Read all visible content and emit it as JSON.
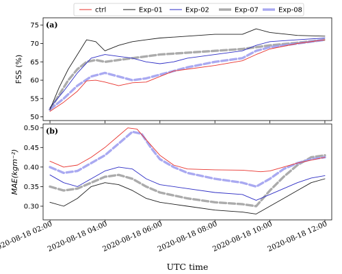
{
  "chart_data": {
    "type": "line",
    "xlabel": "UTC time",
    "x_ticks": [
      "2020-08-18 02:00",
      "2020-08-18 04:00",
      "2020-08-18 06:00",
      "2020-08-18 08:00",
      "2020-08-18 10:00",
      "2020-08-18 12:00"
    ],
    "x_range": [
      "2020-08-18 01:45",
      "2020-08-18 12:15"
    ],
    "legend": {
      "placement": "top",
      "entries": [
        "ctrl",
        "Exp-01",
        "Exp-02",
        "Exp-07",
        "Exp-08"
      ]
    },
    "series_styles": [
      {
        "name": "ctrl",
        "color": "#e8312b",
        "width": "thin",
        "dash": "solid"
      },
      {
        "name": "Exp-01",
        "color": "#1a1a1a",
        "width": "thin",
        "dash": "solid"
      },
      {
        "name": "Exp-02",
        "color": "#2b2bc4",
        "width": "thin",
        "dash": "solid"
      },
      {
        "name": "Exp-07",
        "color": "#9c9c9c",
        "width": "thick",
        "dash": "dashed"
      },
      {
        "name": "Exp-08",
        "color": "#9a9aee",
        "width": "thick",
        "dash": "dashed"
      }
    ],
    "panels": [
      {
        "label": "(a)",
        "ylabel": "FSS (%)",
        "ylim": [
          49,
          77
        ],
        "yticks": [
          50,
          55,
          60,
          65,
          70,
          75
        ],
        "grid": false,
        "series": [
          {
            "name": "ctrl",
            "points": [
              [
                "2020-08-18 02:00",
                51.5
              ],
              [
                "2020-08-18 02:30",
                54
              ],
              [
                "2020-08-18 03:00",
                57
              ],
              [
                "2020-08-18 03:20",
                59.8
              ],
              [
                "2020-08-18 03:40",
                60
              ],
              [
                "2020-08-18 04:00",
                59.5
              ],
              [
                "2020-08-18 04:30",
                58.5
              ],
              [
                "2020-08-18 05:00",
                59.3
              ],
              [
                "2020-08-18 05:30",
                59.5
              ],
              [
                "2020-08-18 06:00",
                61
              ],
              [
                "2020-08-18 06:30",
                62.5
              ],
              [
                "2020-08-18 07:00",
                63
              ],
              [
                "2020-08-18 08:00",
                64
              ],
              [
                "2020-08-18 09:00",
                65.3
              ],
              [
                "2020-08-18 09:30",
                67
              ],
              [
                "2020-08-18 10:00",
                68.5
              ],
              [
                "2020-08-18 11:00",
                70
              ],
              [
                "2020-08-18 12:00",
                71
              ]
            ]
          },
          {
            "name": "Exp-01",
            "points": [
              [
                "2020-08-18 02:00",
                52
              ],
              [
                "2020-08-18 02:20",
                58
              ],
              [
                "2020-08-18 02:40",
                63
              ],
              [
                "2020-08-18 03:00",
                67
              ],
              [
                "2020-08-18 03:20",
                71
              ],
              [
                "2020-08-18 03:40",
                70.5
              ],
              [
                "2020-08-18 04:00",
                68
              ],
              [
                "2020-08-18 04:30",
                69.5
              ],
              [
                "2020-08-18 05:00",
                70.5
              ],
              [
                "2020-08-18 05:30",
                71
              ],
              [
                "2020-08-18 06:00",
                71.5
              ],
              [
                "2020-08-18 07:00",
                72
              ],
              [
                "2020-08-18 08:00",
                72.5
              ],
              [
                "2020-08-18 09:00",
                72.5
              ],
              [
                "2020-08-18 09:30",
                74
              ],
              [
                "2020-08-18 10:00",
                73
              ],
              [
                "2020-08-18 11:00",
                72.2
              ],
              [
                "2020-08-18 12:00",
                72
              ]
            ]
          },
          {
            "name": "Exp-02",
            "points": [
              [
                "2020-08-18 02:00",
                52.5
              ],
              [
                "2020-08-18 02:30",
                57
              ],
              [
                "2020-08-18 03:00",
                62
              ],
              [
                "2020-08-18 03:30",
                66
              ],
              [
                "2020-08-18 04:00",
                67
              ],
              [
                "2020-08-18 04:30",
                66.5
              ],
              [
                "2020-08-18 05:00",
                66
              ],
              [
                "2020-08-18 05:30",
                65
              ],
              [
                "2020-08-18 06:00",
                64.5
              ],
              [
                "2020-08-18 06:30",
                65
              ],
              [
                "2020-08-18 07:00",
                66
              ],
              [
                "2020-08-18 08:00",
                67
              ],
              [
                "2020-08-18 09:00",
                68
              ],
              [
                "2020-08-18 09:30",
                69.5
              ],
              [
                "2020-08-18 10:00",
                70.5
              ],
              [
                "2020-08-18 11:00",
                71
              ],
              [
                "2020-08-18 12:00",
                71.5
              ]
            ]
          },
          {
            "name": "Exp-07",
            "points": [
              [
                "2020-08-18 02:00",
                52
              ],
              [
                "2020-08-18 02:20",
                56
              ],
              [
                "2020-08-18 02:40",
                60
              ],
              [
                "2020-08-18 03:00",
                63
              ],
              [
                "2020-08-18 03:20",
                65
              ],
              [
                "2020-08-18 03:40",
                65.5
              ],
              [
                "2020-08-18 04:00",
                65
              ],
              [
                "2020-08-18 04:30",
                65.5
              ],
              [
                "2020-08-18 05:00",
                66
              ],
              [
                "2020-08-18 05:30",
                66.5
              ],
              [
                "2020-08-18 06:00",
                67
              ],
              [
                "2020-08-18 07:00",
                67.5
              ],
              [
                "2020-08-18 08:00",
                68
              ],
              [
                "2020-08-18 09:00",
                68.5
              ],
              [
                "2020-08-18 09:30",
                69
              ],
              [
                "2020-08-18 10:00",
                69.5
              ],
              [
                "2020-08-18 11:00",
                70.2
              ],
              [
                "2020-08-18 12:00",
                71
              ]
            ]
          },
          {
            "name": "Exp-08",
            "points": [
              [
                "2020-08-18 02:00",
                52
              ],
              [
                "2020-08-18 02:30",
                55
              ],
              [
                "2020-08-18 03:00",
                58.5
              ],
              [
                "2020-08-18 03:30",
                61
              ],
              [
                "2020-08-18 04:00",
                62
              ],
              [
                "2020-08-18 04:30",
                61
              ],
              [
                "2020-08-18 05:00",
                60
              ],
              [
                "2020-08-18 05:30",
                60.5
              ],
              [
                "2020-08-18 06:00",
                61.5
              ],
              [
                "2020-08-18 07:00",
                63.5
              ],
              [
                "2020-08-18 08:00",
                65
              ],
              [
                "2020-08-18 09:00",
                66
              ],
              [
                "2020-08-18 09:30",
                68
              ],
              [
                "2020-08-18 10:00",
                69
              ],
              [
                "2020-08-18 11:00",
                70
              ],
              [
                "2020-08-18 12:00",
                71
              ]
            ]
          }
        ]
      },
      {
        "label": "(b)",
        "ylabel": "MAE(kgm⁻²)",
        "ylim": [
          0.265,
          0.51
        ],
        "yticks": [
          0.3,
          0.35,
          0.4,
          0.45,
          0.5
        ],
        "grid": false,
        "series": [
          {
            "name": "ctrl",
            "points": [
              [
                "2020-08-18 02:00",
                0.415
              ],
              [
                "2020-08-18 02:30",
                0.4
              ],
              [
                "2020-08-18 03:00",
                0.405
              ],
              [
                "2020-08-18 03:30",
                0.425
              ],
              [
                "2020-08-18 04:00",
                0.45
              ],
              [
                "2020-08-18 04:30",
                0.48
              ],
              [
                "2020-08-18 04:50",
                0.5
              ],
              [
                "2020-08-18 05:10",
                0.497
              ],
              [
                "2020-08-18 05:30",
                0.47
              ],
              [
                "2020-08-18 06:00",
                0.43
              ],
              [
                "2020-08-18 06:30",
                0.405
              ],
              [
                "2020-08-18 07:00",
                0.395
              ],
              [
                "2020-08-18 08:00",
                0.393
              ],
              [
                "2020-08-18 09:00",
                0.392
              ],
              [
                "2020-08-18 09:40",
                0.388
              ],
              [
                "2020-08-18 10:00",
                0.39
              ],
              [
                "2020-08-18 11:00",
                0.41
              ],
              [
                "2020-08-18 12:00",
                0.425
              ]
            ]
          },
          {
            "name": "Exp-01",
            "points": [
              [
                "2020-08-18 02:00",
                0.31
              ],
              [
                "2020-08-18 02:30",
                0.3
              ],
              [
                "2020-08-18 03:00",
                0.32
              ],
              [
                "2020-08-18 03:30",
                0.35
              ],
              [
                "2020-08-18 04:00",
                0.36
              ],
              [
                "2020-08-18 04:30",
                0.355
              ],
              [
                "2020-08-18 05:00",
                0.34
              ],
              [
                "2020-08-18 05:30",
                0.32
              ],
              [
                "2020-08-18 06:00",
                0.31
              ],
              [
                "2020-08-18 07:00",
                0.3
              ],
              [
                "2020-08-18 08:00",
                0.29
              ],
              [
                "2020-08-18 09:00",
                0.285
              ],
              [
                "2020-08-18 09:30",
                0.28
              ],
              [
                "2020-08-18 10:00",
                0.3
              ],
              [
                "2020-08-18 10:30",
                0.32
              ],
              [
                "2020-08-18 11:00",
                0.34
              ],
              [
                "2020-08-18 11:30",
                0.36
              ],
              [
                "2020-08-18 12:00",
                0.37
              ]
            ]
          },
          {
            "name": "Exp-02",
            "points": [
              [
                "2020-08-18 02:00",
                0.38
              ],
              [
                "2020-08-18 02:30",
                0.36
              ],
              [
                "2020-08-18 03:00",
                0.35
              ],
              [
                "2020-08-18 03:30",
                0.37
              ],
              [
                "2020-08-18 04:00",
                0.39
              ],
              [
                "2020-08-18 04:30",
                0.4
              ],
              [
                "2020-08-18 05:00",
                0.395
              ],
              [
                "2020-08-18 05:30",
                0.37
              ],
              [
                "2020-08-18 06:00",
                0.355
              ],
              [
                "2020-08-18 07:00",
                0.345
              ],
              [
                "2020-08-18 08:00",
                0.335
              ],
              [
                "2020-08-18 09:00",
                0.33
              ],
              [
                "2020-08-18 09:30",
                0.315
              ],
              [
                "2020-08-18 10:00",
                0.33
              ],
              [
                "2020-08-18 10:30",
                0.345
              ],
              [
                "2020-08-18 11:00",
                0.36
              ],
              [
                "2020-08-18 11:30",
                0.372
              ],
              [
                "2020-08-18 12:00",
                0.378
              ]
            ]
          },
          {
            "name": "Exp-07",
            "points": [
              [
                "2020-08-18 02:00",
                0.35
              ],
              [
                "2020-08-18 02:30",
                0.34
              ],
              [
                "2020-08-18 03:00",
                0.345
              ],
              [
                "2020-08-18 03:30",
                0.36
              ],
              [
                "2020-08-18 04:00",
                0.375
              ],
              [
                "2020-08-18 04:30",
                0.38
              ],
              [
                "2020-08-18 05:00",
                0.37
              ],
              [
                "2020-08-18 05:30",
                0.35
              ],
              [
                "2020-08-18 06:00",
                0.335
              ],
              [
                "2020-08-18 07:00",
                0.32
              ],
              [
                "2020-08-18 08:00",
                0.31
              ],
              [
                "2020-08-18 09:00",
                0.305
              ],
              [
                "2020-08-18 09:30",
                0.3
              ],
              [
                "2020-08-18 10:00",
                0.34
              ],
              [
                "2020-08-18 10:30",
                0.375
              ],
              [
                "2020-08-18 11:00",
                0.405
              ],
              [
                "2020-08-18 11:30",
                0.425
              ],
              [
                "2020-08-18 12:00",
                0.43
              ]
            ]
          },
          {
            "name": "Exp-08",
            "points": [
              [
                "2020-08-18 02:00",
                0.4
              ],
              [
                "2020-08-18 02:30",
                0.385
              ],
              [
                "2020-08-18 03:00",
                0.39
              ],
              [
                "2020-08-18 03:30",
                0.41
              ],
              [
                "2020-08-18 04:00",
                0.43
              ],
              [
                "2020-08-18 04:30",
                0.46
              ],
              [
                "2020-08-18 05:00",
                0.49
              ],
              [
                "2020-08-18 05:20",
                0.485
              ],
              [
                "2020-08-18 05:40",
                0.45
              ],
              [
                "2020-08-18 06:00",
                0.42
              ],
              [
                "2020-08-18 06:30",
                0.4
              ],
              [
                "2020-08-18 07:00",
                0.385
              ],
              [
                "2020-08-18 08:00",
                0.37
              ],
              [
                "2020-08-18 09:00",
                0.36
              ],
              [
                "2020-08-18 09:30",
                0.35
              ],
              [
                "2020-08-18 10:00",
                0.37
              ],
              [
                "2020-08-18 10:30",
                0.395
              ],
              [
                "2020-08-18 11:00",
                0.41
              ],
              [
                "2020-08-18 11:30",
                0.42
              ],
              [
                "2020-08-18 12:00",
                0.425
              ]
            ]
          }
        ]
      }
    ]
  }
}
